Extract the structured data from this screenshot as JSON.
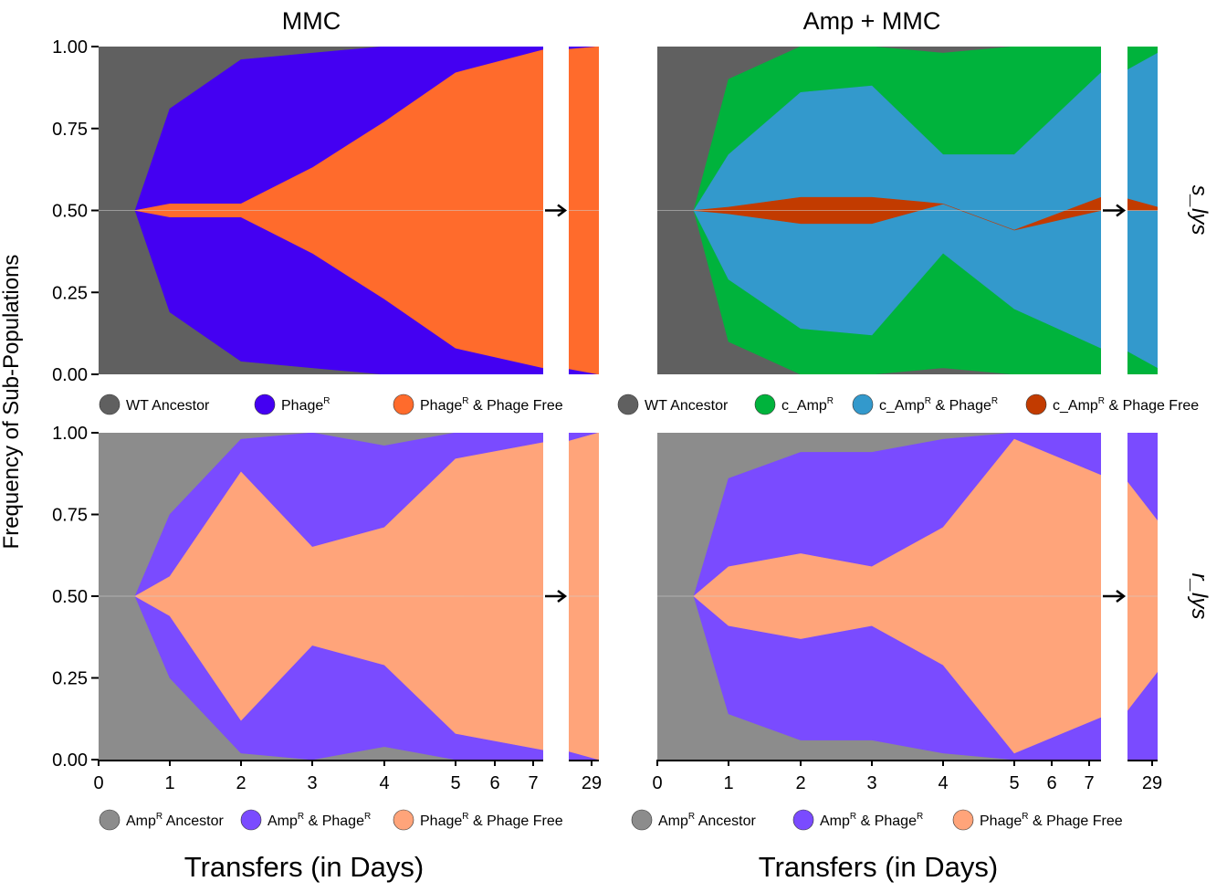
{
  "figure": {
    "ylabel": "Frequency of  Sub-Populations",
    "xlabel": "Transfers (in Days)",
    "col_titles": [
      "MMC",
      "Amp + MMC"
    ],
    "row_labels": [
      "s_lys",
      "r_lys"
    ],
    "y_ticks": [
      "0.00",
      "0.25",
      "0.50",
      "0.75",
      "1.00"
    ],
    "x_ticks": [
      "0",
      "1",
      "2",
      "3",
      "4",
      "5",
      "6",
      "7",
      "29"
    ],
    "x_tick_values": [
      0,
      1,
      2,
      3,
      4,
      5,
      6,
      7,
      29
    ],
    "legends": {
      "top_left": [
        {
          "label": "WT Ancestor",
          "sup": "",
          "suffix": "",
          "color": "#606060"
        },
        {
          "label": "Phage",
          "sup": "R",
          "suffix": "",
          "color": "#4400f2"
        },
        {
          "label": "Phage",
          "sup": "R",
          "suffix": " & Phage Free",
          "color": "#ff6b2c"
        }
      ],
      "top_right": [
        {
          "label": "WT Ancestor",
          "sup": "",
          "suffix": "",
          "color": "#606060"
        },
        {
          "label": "c_Amp",
          "sup": "R",
          "suffix": "",
          "color": "#00b33c"
        },
        {
          "label": "c_Amp",
          "sup": "R",
          "suffix": " & Phage",
          "sup2": "R",
          "color": "#3399cc"
        },
        {
          "label": "c_Amp",
          "sup": "R",
          "suffix": " & Phage Free",
          "color": "#c23b00"
        }
      ],
      "bottom_left": [
        {
          "label": "Amp",
          "sup": "R",
          "suffix": " Ancestor",
          "color": "#8c8c8c"
        },
        {
          "label": "Amp",
          "sup": "R",
          "suffix": " & Phage",
          "sup2": "R",
          "color": "#7a4bff"
        },
        {
          "label": "Phage",
          "sup": "R",
          "suffix": " & Phage Free",
          "color": "#ffa47a"
        }
      ],
      "bottom_right": [
        {
          "label": "Amp",
          "sup": "R",
          "suffix": " Ancestor",
          "color": "#8c8c8c"
        },
        {
          "label": "Amp",
          "sup": "R",
          "suffix": " & Phage",
          "sup2": "R",
          "color": "#7a4bff"
        },
        {
          "label": "Phage",
          "sup": "R",
          "suffix": " & Phage Free",
          "color": "#ffa47a"
        }
      ]
    }
  },
  "chart_data": [
    {
      "type": "area",
      "panel": "MMC / s_lys",
      "x": [
        0.5,
        1,
        2,
        3,
        4,
        5,
        7,
        29
      ],
      "background_color": "#606060",
      "series": [
        {
          "color": "#4400f2",
          "upper": [
            0.5,
            0.81,
            0.96,
            0.98,
            1.0,
            1.0,
            1.0,
            1.0
          ],
          "lower": [
            0.5,
            0.19,
            0.04,
            0.02,
            0.0,
            0.0,
            0.0,
            0.0
          ]
        },
        {
          "color": "#ff6b2c",
          "upper": [
            0.5,
            0.52,
            0.52,
            0.63,
            0.77,
            0.92,
            0.99,
            1.0
          ],
          "lower": [
            0.5,
            0.48,
            0.48,
            0.37,
            0.23,
            0.08,
            0.02,
            0.0
          ]
        }
      ],
      "ylim": [
        0,
        1
      ]
    },
    {
      "type": "area",
      "panel": "Amp + MMC / s_lys",
      "x": [
        0.5,
        1,
        2,
        3,
        4,
        5,
        7,
        29
      ],
      "background_color": "#606060",
      "series": [
        {
          "color": "#00b33c",
          "upper": [
            0.5,
            0.9,
            1.0,
            1.0,
            0.98,
            1.0,
            1.0,
            1.0
          ],
          "lower": [
            0.5,
            0.1,
            0.0,
            0.0,
            0.02,
            0.0,
            0.0,
            0.0
          ]
        },
        {
          "color": "#3399cc",
          "upper": [
            0.5,
            0.67,
            0.86,
            0.88,
            0.67,
            0.67,
            0.92,
            0.98
          ],
          "lower": [
            0.5,
            0.29,
            0.14,
            0.12,
            0.37,
            0.2,
            0.08,
            0.02
          ]
        },
        {
          "color": "#c23b00",
          "upper": [
            0.5,
            0.51,
            0.54,
            0.54,
            0.52,
            0.44,
            0.54,
            0.51
          ],
          "lower": [
            0.5,
            0.49,
            0.46,
            0.46,
            0.52,
            0.44,
            0.5,
            0.5
          ]
        }
      ],
      "ylim": [
        0,
        1
      ]
    },
    {
      "type": "area",
      "panel": "MMC / r_lys",
      "x": [
        0.5,
        1,
        2,
        3,
        4,
        5,
        7,
        29
      ],
      "background_color": "#8c8c8c",
      "series": [
        {
          "color": "#7a4bff",
          "upper": [
            0.5,
            0.75,
            0.98,
            1.0,
            0.96,
            1.0,
            1.0,
            1.0
          ],
          "lower": [
            0.5,
            0.25,
            0.02,
            0.0,
            0.04,
            0.0,
            0.0,
            0.0
          ]
        },
        {
          "color": "#ffa47a",
          "upper": [
            0.5,
            0.56,
            0.88,
            0.65,
            0.71,
            0.92,
            0.97,
            1.0
          ],
          "lower": [
            0.5,
            0.44,
            0.12,
            0.35,
            0.29,
            0.08,
            0.03,
            0.0
          ]
        }
      ],
      "ylim": [
        0,
        1
      ]
    },
    {
      "type": "area",
      "panel": "Amp + MMC / r_lys",
      "x": [
        0.5,
        1,
        2,
        3,
        4,
        5,
        7,
        29
      ],
      "background_color": "#8c8c8c",
      "series": [
        {
          "color": "#7a4bff",
          "upper": [
            0.5,
            0.86,
            0.94,
            0.94,
            0.98,
            1.0,
            1.0,
            1.0
          ],
          "lower": [
            0.5,
            0.14,
            0.06,
            0.06,
            0.02,
            0.0,
            0.0,
            0.0
          ]
        },
        {
          "color": "#ffa47a",
          "upper": [
            0.5,
            0.59,
            0.63,
            0.59,
            0.71,
            0.98,
            0.87,
            0.73
          ],
          "lower": [
            0.5,
            0.41,
            0.37,
            0.41,
            0.29,
            0.02,
            0.13,
            0.27
          ]
        }
      ],
      "ylim": [
        0,
        1
      ]
    }
  ]
}
